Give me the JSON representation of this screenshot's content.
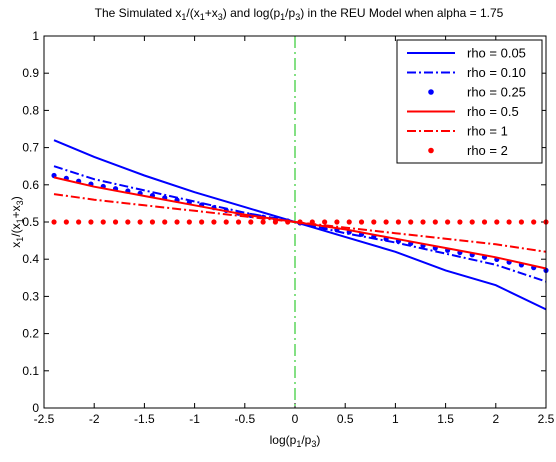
{
  "chart_data": {
    "type": "line",
    "title": {
      "parts": [
        {
          "t": "The Simulated x"
        },
        {
          "t": "1",
          "sub": true
        },
        {
          "t": "/(x"
        },
        {
          "t": "1",
          "sub": true
        },
        {
          "t": "+x"
        },
        {
          "t": "3",
          "sub": true
        },
        {
          "t": ") and log(p"
        },
        {
          "t": "1",
          "sub": true
        },
        {
          "t": "/p"
        },
        {
          "t": "3",
          "sub": true
        },
        {
          "t": ") in the REU Model when alpha = 1.75"
        }
      ]
    },
    "xlabel": {
      "parts": [
        {
          "t": "log(p"
        },
        {
          "t": "1",
          "sub": true
        },
        {
          "t": "/p"
        },
        {
          "t": "3",
          "sub": true
        },
        {
          "t": ")"
        }
      ]
    },
    "ylabel": {
      "parts": [
        {
          "t": "x"
        },
        {
          "t": "1",
          "sub": true
        },
        {
          "t": "/(x"
        },
        {
          "t": "1",
          "sub": true
        },
        {
          "t": "+x"
        },
        {
          "t": "3",
          "sub": true
        },
        {
          "t": ")"
        }
      ]
    },
    "xlim": [
      -2.5,
      2.5
    ],
    "ylim": [
      0,
      1
    ],
    "xticks": [
      -2.5,
      -2,
      -1.5,
      -1,
      -0.5,
      0,
      0.5,
      1,
      1.5,
      2,
      2.5
    ],
    "xtick_labels": [
      "-2.5",
      "-2",
      "-1.5",
      "-1",
      "-0.5",
      "0",
      "0.5",
      "1",
      "1.5",
      "2",
      "2.5"
    ],
    "yticks": [
      0,
      0.1,
      0.2,
      0.3,
      0.4,
      0.5,
      0.6,
      0.7,
      0.8,
      0.9,
      1
    ],
    "ytick_labels": [
      "0",
      "0.1",
      "0.2",
      "0.3",
      "0.4",
      "0.5",
      "0.6",
      "0.7",
      "0.8",
      "0.9",
      "1"
    ],
    "grid": false,
    "legend_position": "top-right",
    "vline": {
      "x": 0,
      "color": "#33cc33",
      "style": "dash-dot"
    },
    "series": [
      {
        "name": "rho = 0.05",
        "color": "#0000ff",
        "style": "solid",
        "marker": "none",
        "x": [
          -2.4,
          -2.0,
          -1.5,
          -1.0,
          -0.5,
          0.0,
          0.5,
          1.0,
          1.5,
          2.0,
          2.5
        ],
        "y": [
          0.72,
          0.675,
          0.625,
          0.58,
          0.54,
          0.5,
          0.46,
          0.42,
          0.37,
          0.33,
          0.265
        ]
      },
      {
        "name": "rho = 0.10",
        "color": "#0000ff",
        "style": "dash-dot",
        "marker": "none",
        "x": [
          -2.4,
          -2.0,
          -1.5,
          -1.0,
          -0.5,
          0.0,
          0.5,
          1.0,
          1.5,
          2.0,
          2.5
        ],
        "y": [
          0.65,
          0.615,
          0.585,
          0.555,
          0.525,
          0.5,
          0.47,
          0.445,
          0.415,
          0.385,
          0.34
        ]
      },
      {
        "name": "rho = 0.25",
        "color": "#0000ff",
        "style": "none",
        "marker": "dot",
        "x": [
          -2.4,
          -2.0,
          -1.5,
          -1.0,
          -0.5,
          0.0,
          0.5,
          1.0,
          1.5,
          2.0,
          2.5
        ],
        "y": [
          0.625,
          0.6,
          0.575,
          0.55,
          0.52,
          0.5,
          0.475,
          0.45,
          0.425,
          0.4,
          0.37
        ]
      },
      {
        "name": "rho = 0.5",
        "color": "#ff0000",
        "style": "solid",
        "marker": "none",
        "x": [
          -2.4,
          -2.0,
          -1.5,
          -1.0,
          -0.5,
          0.0,
          0.5,
          1.0,
          1.5,
          2.0,
          2.5
        ],
        "y": [
          0.62,
          0.595,
          0.57,
          0.545,
          0.52,
          0.5,
          0.48,
          0.455,
          0.43,
          0.405,
          0.375
        ]
      },
      {
        "name": "rho = 1",
        "color": "#ff0000",
        "style": "dash-dot",
        "marker": "none",
        "x": [
          -2.4,
          -2.0,
          -1.5,
          -1.0,
          -0.5,
          0.0,
          0.5,
          1.0,
          1.5,
          2.0,
          2.5
        ],
        "y": [
          0.575,
          0.56,
          0.545,
          0.53,
          0.515,
          0.5,
          0.485,
          0.47,
          0.455,
          0.44,
          0.42
        ]
      },
      {
        "name": "rho = 2",
        "color": "#ff0000",
        "style": "none",
        "marker": "dot",
        "x": [
          -2.4,
          -2.0,
          -1.5,
          -1.0,
          -0.5,
          0.0,
          0.5,
          1.0,
          1.5,
          2.0,
          2.5
        ],
        "y": [
          0.5,
          0.5,
          0.5,
          0.5,
          0.5,
          0.5,
          0.5,
          0.5,
          0.5,
          0.5,
          0.5
        ]
      }
    ]
  }
}
